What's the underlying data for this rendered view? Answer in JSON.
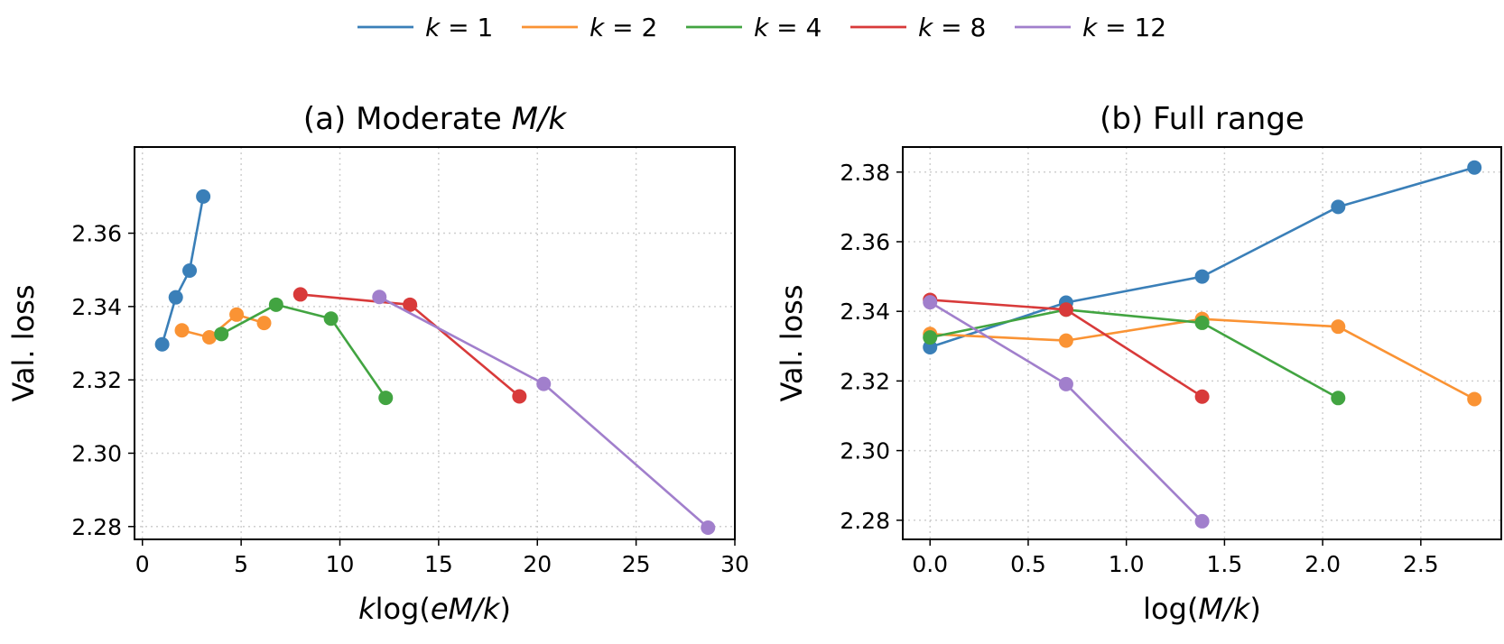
{
  "legend": {
    "entries": [
      {
        "label": "k = 1",
        "italic": "k",
        "rest": " = 1",
        "color": "#3a7fb8"
      },
      {
        "label": "k = 2",
        "italic": "k",
        "rest": " = 2",
        "color": "#fa9334"
      },
      {
        "label": "k = 4",
        "italic": "k",
        "rest": " = 4",
        "color": "#42a441"
      },
      {
        "label": "k = 8",
        "italic": "k",
        "rest": " = 8",
        "color": "#d83a3a"
      },
      {
        "label": "k = 12",
        "italic": "k",
        "rest": " = 12",
        "color": "#a17fcc"
      }
    ],
    "placement": "top-center"
  },
  "chart_data": [
    {
      "type": "line",
      "title": "(a) Moderate M/k",
      "title_parts": {
        "plain": "(a) Moderate ",
        "italic": "M/k"
      },
      "xlabel": "klog(eM/k)",
      "xlabel_parts": [
        {
          "t": "k",
          "i": true
        },
        {
          "t": "log(",
          "i": false
        },
        {
          "t": "eM/k",
          "i": true
        },
        {
          "t": ")",
          "i": false
        }
      ],
      "ylabel": "Val. loss",
      "xlim": [
        -0.4,
        30.0
      ],
      "ylim": [
        2.2765,
        2.3835
      ],
      "xticks": [
        0,
        5,
        10,
        15,
        20,
        25,
        30
      ],
      "xtick_labels": [
        "0",
        "5",
        "10",
        "15",
        "20",
        "25",
        "30"
      ],
      "yticks": [
        2.28,
        2.3,
        2.32,
        2.34,
        2.36
      ],
      "ytick_labels": [
        "2.28",
        "2.30",
        "2.32",
        "2.34",
        "2.36"
      ],
      "grid": true,
      "series": [
        {
          "name": "k = 1",
          "color": "#3a7fb8",
          "points": [
            [
              1.0,
              2.3297
            ],
            [
              1.69,
              2.3425
            ],
            [
              2.39,
              2.3498
            ],
            [
              3.08,
              2.37
            ]
          ]
        },
        {
          "name": "k = 2",
          "color": "#fa9334",
          "points": [
            [
              2.0,
              2.3335
            ],
            [
              3.39,
              2.3316
            ],
            [
              4.77,
              2.3378
            ],
            [
              6.16,
              2.3355
            ]
          ]
        },
        {
          "name": "k = 4",
          "color": "#42a441",
          "points": [
            [
              4.0,
              2.3325
            ],
            [
              6.77,
              2.3405
            ],
            [
              9.55,
              2.3367
            ],
            [
              12.32,
              2.3151
            ]
          ]
        },
        {
          "name": "k = 8",
          "color": "#d83a3a",
          "points": [
            [
              8.0,
              2.3433
            ],
            [
              13.55,
              2.3405
            ],
            [
              19.09,
              2.3155
            ]
          ]
        },
        {
          "name": "k = 12",
          "color": "#a17fcc",
          "points": [
            [
              12.0,
              2.3426
            ],
            [
              20.32,
              2.3189
            ],
            [
              28.64,
              2.2797
            ]
          ]
        }
      ]
    },
    {
      "type": "line",
      "title": "(b) Full range",
      "title_parts": {
        "plain": "(b) Full range",
        "italic": ""
      },
      "xlabel": "log(M/k)",
      "xlabel_parts": [
        {
          "t": "log(",
          "i": false
        },
        {
          "t": "M/k",
          "i": true
        },
        {
          "t": ")",
          "i": false
        }
      ],
      "ylabel": "Val. loss",
      "xlim": [
        -0.139,
        2.91
      ],
      "ylim": [
        2.2745,
        2.3872
      ],
      "xticks": [
        0.0,
        0.5,
        1.0,
        1.5,
        2.0,
        2.5
      ],
      "xtick_labels": [
        "0.0",
        "0.5",
        "1.0",
        "1.5",
        "2.0",
        "2.5"
      ],
      "yticks": [
        2.28,
        2.3,
        2.32,
        2.34,
        2.36,
        2.38
      ],
      "ytick_labels": [
        "2.28",
        "2.30",
        "2.32",
        "2.34",
        "2.36",
        "2.38"
      ],
      "grid": true,
      "series": [
        {
          "name": "k = 1",
          "color": "#3a7fb8",
          "points": [
            [
              0.0,
              2.3297
            ],
            [
              0.693,
              2.3425
            ],
            [
              1.386,
              2.35
            ],
            [
              2.079,
              2.37
            ],
            [
              2.773,
              2.3813
            ]
          ]
        },
        {
          "name": "k = 2",
          "color": "#fa9334",
          "points": [
            [
              0.0,
              2.3335
            ],
            [
              0.693,
              2.3316
            ],
            [
              1.386,
              2.3378
            ],
            [
              2.079,
              2.3356
            ],
            [
              2.773,
              2.3148
            ]
          ]
        },
        {
          "name": "k = 4",
          "color": "#42a441",
          "points": [
            [
              0.0,
              2.3325
            ],
            [
              0.693,
              2.3405
            ],
            [
              1.386,
              2.3367
            ],
            [
              2.079,
              2.3151
            ]
          ]
        },
        {
          "name": "k = 8",
          "color": "#d83a3a",
          "points": [
            [
              0.0,
              2.3433
            ],
            [
              0.693,
              2.3405
            ],
            [
              1.386,
              2.3155
            ]
          ]
        },
        {
          "name": "k = 12",
          "color": "#a17fcc",
          "points": [
            [
              0.0,
              2.3426
            ],
            [
              0.693,
              2.3191
            ],
            [
              1.386,
              2.2797
            ]
          ]
        }
      ]
    }
  ]
}
